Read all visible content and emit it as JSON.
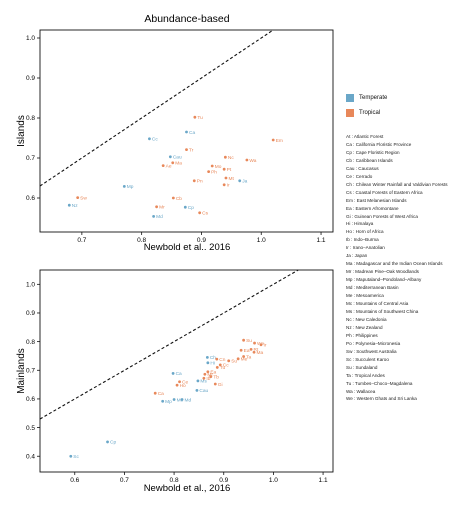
{
  "legend": [
    {
      "label": "Temperate",
      "color": "#6aa7c8"
    },
    {
      "label": "Tropical",
      "color": "#e8885a"
    }
  ],
  "abbreviations": [
    "At : Atlantic Forest",
    "Ca : California Floristic Province",
    "Cp : Cape Floristic Region",
    "Cb : Caribbean Islands",
    "Cau : Caucasus",
    "Ce : Cerrado",
    "Ch : Chilean Winter Rainfall and Valdivian Forests",
    "Cs : Coastal Forests of Eastern Africa",
    "Em : East Melanesian Islands",
    "Ea : Eastern Afromontane",
    "Gi : Guinean Forests of West Africa",
    "Hi : Himalaya",
    "Ho : Horn of Africa",
    "Ib : Indo–Burma",
    "Ir : Irano–Anatolian",
    "Ja : Japan",
    "Ma : Madagascar and the Indian Ocean Islands",
    "Mr : Madrean Pine–Oak Woodlands",
    "Mp : Maputaland–Pondoland–Albany",
    "Md : Mediterranean Basin",
    "Me : Mesoamerica",
    "Mc : Mountains of Central Asia",
    "Ms : Mountains of Southwest China",
    "Nc : New Caledonia",
    "Nz : New Zealand",
    "Ph : Philippines",
    "Po : Polynesia–Micronesia",
    "Sw : Southwest Australia",
    "Sc : Succulent Karoo",
    "Su : Sundaland",
    "Ta : Tropical Andes",
    "Tu : Tumbes–Choco–Magdalena",
    "Wa : Wallacea",
    "We : Western Ghats and Sri Lanka"
  ],
  "chart_data": [
    {
      "type": "scatter",
      "title": "Abundance-based",
      "xlabel": "Newbold et al.. 2016",
      "ylabel": "Islands",
      "xlim": [
        0.63,
        1.12
      ],
      "ylim": [
        0.515,
        1.02
      ],
      "xticks": [
        "0.7",
        "0.8",
        "0.9",
        "1.0",
        "1.1"
      ],
      "yticks": [
        "0.6",
        "0.7",
        "0.8",
        "0.9",
        "1.0"
      ],
      "reference_line": "y = x (dashed)",
      "points": [
        {
          "label": "Nz",
          "x": 0.679,
          "y": 0.582,
          "group": "Temperate"
        },
        {
          "label": "Sw",
          "x": 0.693,
          "y": 0.601,
          "group": "Tropical"
        },
        {
          "label": "Mp",
          "x": 0.771,
          "y": 0.629,
          "group": "Temperate"
        },
        {
          "label": "Cc",
          "x": 0.813,
          "y": 0.748,
          "group": "Temperate"
        },
        {
          "label": "Ca",
          "x": 0.875,
          "y": 0.765,
          "group": "Temperate"
        },
        {
          "label": "Tu",
          "x": 0.889,
          "y": 0.802,
          "group": "Tropical"
        },
        {
          "label": "Em",
          "x": 1.02,
          "y": 0.745,
          "group": "Tropical"
        },
        {
          "label": "Cau",
          "x": 0.848,
          "y": 0.703,
          "group": "Temperate"
        },
        {
          "label": "Tr",
          "x": 0.875,
          "y": 0.721,
          "group": "Tropical"
        },
        {
          "label": "Ae",
          "x": 0.836,
          "y": 0.681,
          "group": "Tropical"
        },
        {
          "label": "Ma",
          "x": 0.852,
          "y": 0.688,
          "group": "Tropical"
        },
        {
          "label": "Nc",
          "x": 0.94,
          "y": 0.702,
          "group": "Tropical"
        },
        {
          "label": "Wa",
          "x": 0.976,
          "y": 0.695,
          "group": "Tropical"
        },
        {
          "label": "Mo",
          "x": 0.918,
          "y": 0.68,
          "group": "Tropical"
        },
        {
          "label": "Ph",
          "x": 0.912,
          "y": 0.666,
          "group": "Tropical"
        },
        {
          "label": "Pt",
          "x": 0.938,
          "y": 0.672,
          "group": "Tropical"
        },
        {
          "label": "Pn",
          "x": 0.888,
          "y": 0.643,
          "group": "Tropical"
        },
        {
          "label": "Mt",
          "x": 0.941,
          "y": 0.65,
          "group": "Tropical"
        },
        {
          "label": "Ja",
          "x": 0.964,
          "y": 0.643,
          "group": "Temperate"
        },
        {
          "label": "Ir",
          "x": 0.938,
          "y": 0.633,
          "group": "Tropical"
        },
        {
          "label": "Cb",
          "x": 0.853,
          "y": 0.6,
          "group": "Tropical"
        },
        {
          "label": "Mr",
          "x": 0.825,
          "y": 0.578,
          "group": "Tropical"
        },
        {
          "label": "Cp",
          "x": 0.873,
          "y": 0.577,
          "group": "Temperate"
        },
        {
          "label": "Cs",
          "x": 0.897,
          "y": 0.563,
          "group": "Tropical"
        },
        {
          "label": "Md",
          "x": 0.82,
          "y": 0.554,
          "group": "Temperate"
        }
      ]
    },
    {
      "type": "scatter",
      "title": "",
      "xlabel": "Newbold et al., 2016",
      "ylabel": "Mainlands",
      "xlim": [
        0.53,
        1.12
      ],
      "ylim": [
        0.345,
        1.05
      ],
      "xticks": [
        "0.6",
        "0.7",
        "0.8",
        "0.9",
        "1.0",
        "1.1"
      ],
      "yticks": [
        "0.4",
        "0.5",
        "0.6",
        "0.7",
        "0.8",
        "0.9",
        "1.0"
      ],
      "reference_line": "y = x (dashed)",
      "points": [
        {
          "label": "Sc",
          "x": 0.592,
          "y": 0.4,
          "group": "Temperate"
        },
        {
          "label": "Cp",
          "x": 0.666,
          "y": 0.45,
          "group": "Temperate"
        },
        {
          "label": "Ca",
          "x": 0.762,
          "y": 0.62,
          "group": "Tropical"
        },
        {
          "label": "Mp",
          "x": 0.777,
          "y": 0.592,
          "group": "Temperate"
        },
        {
          "label": "Mc",
          "x": 0.8,
          "y": 0.598,
          "group": "Temperate"
        },
        {
          "label": "Md",
          "x": 0.816,
          "y": 0.598,
          "group": "Temperate"
        },
        {
          "label": "Ca",
          "x": 0.798,
          "y": 0.689,
          "group": "Temperate"
        },
        {
          "label": "Ce",
          "x": 0.811,
          "y": 0.66,
          "group": "Tropical"
        },
        {
          "label": "Ho",
          "x": 0.806,
          "y": 0.648,
          "group": "Tropical"
        },
        {
          "label": "Ms",
          "x": 0.848,
          "y": 0.663,
          "group": "Temperate"
        },
        {
          "label": "Cau",
          "x": 0.846,
          "y": 0.63,
          "group": "Temperate"
        },
        {
          "label": "Ib",
          "x": 0.86,
          "y": 0.672,
          "group": "Tropical"
        },
        {
          "label": "Ea",
          "x": 0.868,
          "y": 0.695,
          "group": "Tropical"
        },
        {
          "label": "Mr",
          "x": 0.862,
          "y": 0.686,
          "group": "Tropical"
        },
        {
          "label": "Gi",
          "x": 0.883,
          "y": 0.652,
          "group": "Tropical"
        },
        {
          "label": "Tb",
          "x": 0.874,
          "y": 0.678,
          "group": "Tropical"
        },
        {
          "label": "Ch",
          "x": 0.867,
          "y": 0.745,
          "group": "Temperate"
        },
        {
          "label": "Hi",
          "x": 0.868,
          "y": 0.726,
          "group": "Temperate"
        },
        {
          "label": "Tu",
          "x": 0.887,
          "y": 0.71,
          "group": "Tropical"
        },
        {
          "label": "Cc",
          "x": 0.893,
          "y": 0.719,
          "group": "Tropical"
        },
        {
          "label": "Cn",
          "x": 0.886,
          "y": 0.739,
          "group": "Tropical"
        },
        {
          "label": "Su",
          "x": 0.91,
          "y": 0.733,
          "group": "Tropical"
        },
        {
          "label": "Ea",
          "x": 0.935,
          "y": 0.77,
          "group": "Tropical"
        },
        {
          "label": "Me",
          "x": 0.929,
          "y": 0.74,
          "group": "Tropical"
        },
        {
          "label": "Ta",
          "x": 0.94,
          "y": 0.748,
          "group": "Tropical"
        },
        {
          "label": "Ma",
          "x": 0.961,
          "y": 0.763,
          "group": "Tropical"
        },
        {
          "label": "Su",
          "x": 0.94,
          "y": 0.805,
          "group": "Tropical"
        },
        {
          "label": "We",
          "x": 0.962,
          "y": 0.795,
          "group": "Tropical"
        },
        {
          "label": "Ir",
          "x": 0.975,
          "y": 0.789,
          "group": "Tropical"
        },
        {
          "label": "Rt",
          "x": 0.955,
          "y": 0.773,
          "group": "Tropical"
        }
      ]
    }
  ]
}
